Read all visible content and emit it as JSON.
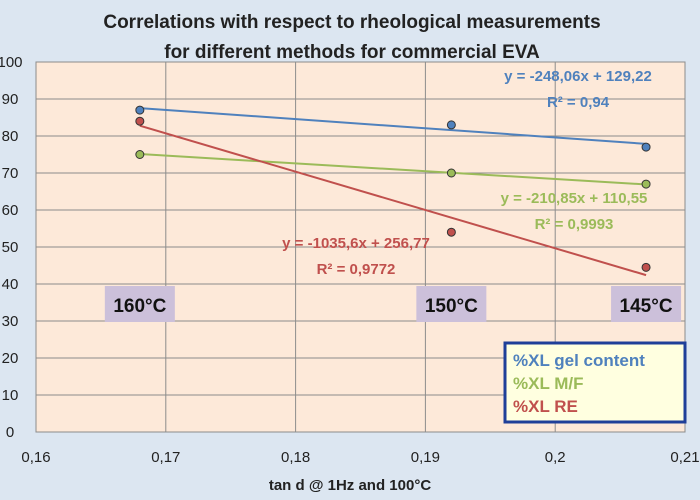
{
  "chart_data": {
    "type": "scatter",
    "title": [
      "Correlations with respect to rheological measurements",
      "for different methods for commercial EVA"
    ],
    "xlabel": "tan d @ 1Hz and 100°C",
    "ylabel": "",
    "xlim": [
      0.16,
      0.21
    ],
    "ylim": [
      0,
      100
    ],
    "x_ticks": [
      "0,16",
      "0,17",
      "0,18",
      "0,19",
      "0,2",
      "0,21"
    ],
    "y_ticks": [
      "0",
      "10",
      "20",
      "30",
      "40",
      "50",
      "60",
      "70",
      "80",
      "90",
      "100"
    ],
    "grid": true,
    "legend_position": "bottom-right",
    "series": [
      {
        "name": "%XL gel content",
        "color": "#4f81bd",
        "x": [
          0.168,
          0.192,
          0.207
        ],
        "y": [
          87,
          83,
          77
        ],
        "trendline": {
          "slope": -248.06,
          "intercept": 129.22
        },
        "equation": "y = -248,06x + 129,22",
        "r2": "R² = 0,94"
      },
      {
        "name": "%XL M/F",
        "color": "#9bbb59",
        "x": [
          0.168,
          0.192,
          0.207
        ],
        "y": [
          75,
          70,
          67
        ],
        "trendline": {
          "slope": -210.85,
          "intercept": 110.55
        },
        "equation": "y = -210,85x + 110,55",
        "r2": "R² = 0,9993"
      },
      {
        "name": "%XL RE",
        "color": "#c0504d",
        "x": [
          0.168,
          0.192,
          0.207
        ],
        "y": [
          84,
          54,
          44.5
        ],
        "trendline": {
          "slope": -1035.6,
          "intercept": 256.77
        },
        "equation": "y = -1035,6x + 256,77",
        "r2": "R² = 0,9772"
      }
    ],
    "annotations": [
      {
        "text": "160°C",
        "x": 0.168
      },
      {
        "text": "150°C",
        "x": 0.192
      },
      {
        "text": "145°C",
        "x": 0.207
      }
    ]
  },
  "colors": {
    "background": "#dce6f1",
    "plot_area": "#fde9d9",
    "legend_bg": "#ffffe0",
    "legend_border": "#1f3f99",
    "annotation_bg": "#ccc0da"
  }
}
